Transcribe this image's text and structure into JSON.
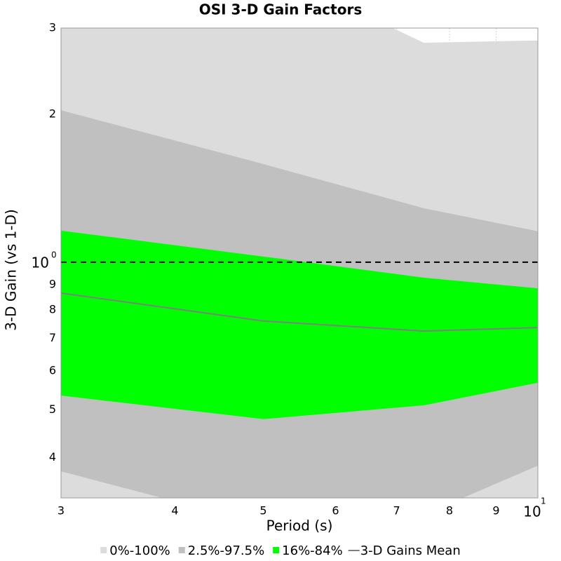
{
  "chart_data": {
    "type": "band",
    "title": "OSI 3-D Gain Factors",
    "xlabel": "Period (s)",
    "ylabel": "3-D Gain (vs 1-D)",
    "x": [
      3,
      5,
      7.5,
      10
    ],
    "xscale": "log",
    "yscale": "log",
    "xlim": [
      3,
      10
    ],
    "ylim": [
      0.331,
      3
    ],
    "xticks": [
      3,
      4,
      5,
      6,
      7,
      8,
      9,
      {
        "value": 10,
        "label": "10",
        "exponent": "1"
      }
    ],
    "yticks": [
      {
        "value": 0.4,
        "label": "4"
      },
      {
        "value": 0.5,
        "label": "5"
      },
      {
        "value": 0.6,
        "label": "6"
      },
      {
        "value": 0.7,
        "label": "7"
      },
      {
        "value": 0.8,
        "label": "8"
      },
      {
        "value": 0.9,
        "label": "9"
      },
      {
        "value": 1,
        "label": "10",
        "exponent": "0"
      },
      2,
      3
    ],
    "grid": true,
    "reference_line": 1,
    "series": [
      {
        "name": "0%-100%",
        "color": "#dcdcdc",
        "lower": [
          0.3,
          0.25,
          0.25,
          0.3
        ],
        "upper": [
          4.0,
          4.0,
          2.8,
          2.83
        ]
      },
      {
        "name": "2.5%-97.5%",
        "color": "#c0c0c0",
        "lower": [
          0.375,
          0.292,
          0.306,
          0.385
        ],
        "upper": [
          2.04,
          1.585,
          1.288,
          1.156
        ]
      },
      {
        "name": "16%-84%",
        "color": "#00ff00",
        "lower": [
          0.535,
          0.479,
          0.511,
          0.568
        ],
        "upper": [
          1.16,
          1.027,
          0.93,
          0.885
        ]
      },
      {
        "name": "3-D Gains Mean",
        "color": "#808080",
        "values": [
          0.865,
          0.759,
          0.724,
          0.736
        ]
      }
    ]
  }
}
